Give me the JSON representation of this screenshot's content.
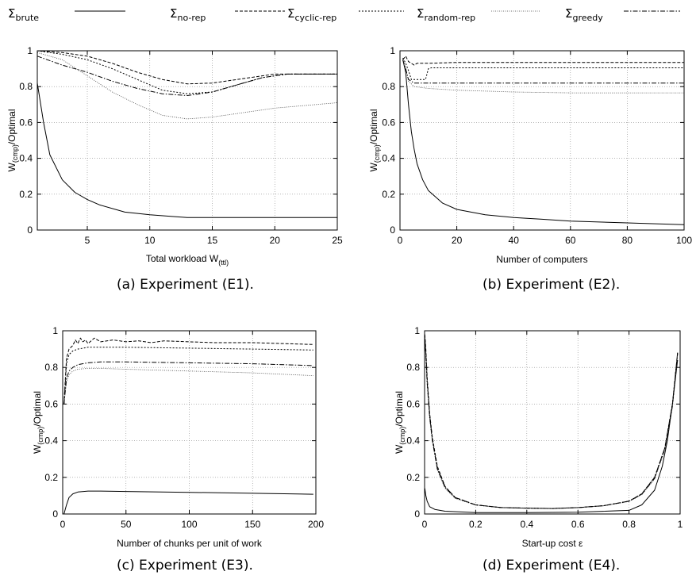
{
  "legend": {
    "symbol": "Σ",
    "entries": [
      {
        "key": "brute",
        "subscript": "brute"
      },
      {
        "key": "norep",
        "subscript": "no-rep"
      },
      {
        "key": "cyclic",
        "subscript": "cyclic-rep"
      },
      {
        "key": "random",
        "subscript": "random-rep"
      },
      {
        "key": "greedy",
        "subscript": "greedy"
      }
    ]
  },
  "chart_data": [
    {
      "type": "line",
      "caption": "(a) Experiment (E1).",
      "xlabel": "Total workload W",
      "xlabel_sub": "(ttl)",
      "ylabel": "W",
      "ylabel_sub": "(cmp)",
      "ylabel_suffix": "/Optimal",
      "xlim": [
        1,
        25
      ],
      "ylim": [
        0,
        1
      ],
      "xticks": [
        5,
        10,
        15,
        20,
        25
      ],
      "yticks": [
        0,
        0.2,
        0.4,
        0.6,
        0.8,
        1
      ],
      "ytick_labels": [
        "0",
        "0.2",
        "0.4",
        "0.6",
        "0.8",
        "1"
      ],
      "grid": true,
      "series": [
        {
          "key": "brute",
          "x": [
            1,
            1.5,
            2,
            3,
            4,
            5,
            6,
            8,
            10,
            12,
            13,
            15,
            20,
            25
          ],
          "y": [
            0.82,
            0.6,
            0.42,
            0.28,
            0.21,
            0.17,
            0.14,
            0.1,
            0.085,
            0.075,
            0.07,
            0.07,
            0.07,
            0.07
          ]
        },
        {
          "key": "norep",
          "x": [
            1,
            3,
            5,
            7,
            9,
            11,
            13,
            15,
            17,
            19,
            20,
            21,
            25
          ],
          "y": [
            1.0,
            0.99,
            0.97,
            0.93,
            0.88,
            0.84,
            0.815,
            0.82,
            0.84,
            0.86,
            0.87,
            0.87,
            0.87
          ]
        },
        {
          "key": "cyclic",
          "x": [
            1,
            3,
            5,
            7,
            9,
            11,
            13,
            15,
            17,
            19,
            21,
            25
          ],
          "y": [
            1.0,
            0.98,
            0.95,
            0.9,
            0.84,
            0.78,
            0.76,
            0.77,
            0.81,
            0.85,
            0.87,
            0.87
          ]
        },
        {
          "key": "random",
          "x": [
            1,
            3,
            5,
            7,
            9,
            11,
            13,
            15,
            17,
            20,
            25
          ],
          "y": [
            0.99,
            0.95,
            0.86,
            0.77,
            0.7,
            0.64,
            0.62,
            0.63,
            0.65,
            0.68,
            0.71
          ]
        },
        {
          "key": "greedy",
          "x": [
            1,
            3,
            5,
            7,
            9,
            11,
            13,
            15,
            17,
            19,
            21,
            25
          ],
          "y": [
            0.97,
            0.92,
            0.88,
            0.83,
            0.79,
            0.76,
            0.75,
            0.77,
            0.81,
            0.85,
            0.87,
            0.87
          ]
        }
      ]
    },
    {
      "type": "line",
      "caption": "(b) Experiment (E2).",
      "xlabel": "Number of computers",
      "xlabel_sub": "",
      "ylabel": "W",
      "ylabel_sub": "(cmp)",
      "ylabel_suffix": "/Optimal",
      "xlim": [
        0,
        100
      ],
      "ylim": [
        0,
        1
      ],
      "xticks": [
        0,
        20,
        40,
        60,
        80,
        100
      ],
      "yticks": [
        0,
        0.2,
        0.4,
        0.6,
        0.8,
        1
      ],
      "ytick_labels": [
        "0",
        "0.2",
        "0.4",
        "0.6",
        "0.8",
        "1"
      ],
      "grid": true,
      "series": [
        {
          "key": "brute",
          "x": [
            1,
            2,
            3,
            4,
            5,
            6,
            8,
            10,
            15,
            20,
            30,
            40,
            50,
            60,
            80,
            100
          ],
          "y": [
            0.95,
            0.88,
            0.7,
            0.55,
            0.45,
            0.37,
            0.28,
            0.22,
            0.15,
            0.115,
            0.085,
            0.07,
            0.06,
            0.05,
            0.04,
            0.03
          ]
        },
        {
          "key": "norep",
          "x": [
            1,
            2,
            3,
            4,
            5,
            6,
            10,
            20,
            40,
            60,
            80,
            100
          ],
          "y": [
            0.95,
            0.97,
            0.94,
            0.93,
            0.92,
            0.93,
            0.93,
            0.935,
            0.935,
            0.935,
            0.935,
            0.935
          ]
        },
        {
          "key": "cyclic",
          "x": [
            1,
            2,
            3,
            4,
            5,
            8,
            9,
            10,
            11,
            20,
            40,
            60,
            80,
            100
          ],
          "y": [
            0.96,
            0.93,
            0.89,
            0.84,
            0.84,
            0.84,
            0.84,
            0.9,
            0.905,
            0.905,
            0.905,
            0.905,
            0.905,
            0.905
          ]
        },
        {
          "key": "random",
          "x": [
            1,
            2,
            3,
            5,
            10,
            20,
            40,
            60,
            80,
            100
          ],
          "y": [
            0.95,
            0.9,
            0.83,
            0.8,
            0.79,
            0.78,
            0.77,
            0.765,
            0.765,
            0.765
          ]
        },
        {
          "key": "greedy",
          "x": [
            1,
            2,
            3,
            5,
            10,
            20,
            40,
            60,
            80,
            100
          ],
          "y": [
            0.95,
            0.9,
            0.84,
            0.82,
            0.82,
            0.82,
            0.82,
            0.82,
            0.82,
            0.82
          ]
        }
      ]
    },
    {
      "type": "line",
      "caption": "(c) Experiment (E3).",
      "xlabel": "Number of chunks per unit of work",
      "xlabel_sub": "",
      "ylabel": "W",
      "ylabel_sub": "(cmp)",
      "ylabel_suffix": "/Optimal",
      "xlim": [
        0,
        200
      ],
      "ylim": [
        0,
        1
      ],
      "xticks": [
        0,
        50,
        100,
        150,
        200
      ],
      "yticks": [
        0,
        0.2,
        0.4,
        0.6,
        0.8,
        1
      ],
      "ytick_labels": [
        "0",
        "0.2",
        "0.4",
        "0.6",
        "0.8",
        "1"
      ],
      "grid": true,
      "series": [
        {
          "key": "brute",
          "x": [
            1,
            3,
            5,
            8,
            12,
            20,
            30,
            50,
            100,
            150,
            198
          ],
          "y": [
            0.0,
            0.05,
            0.09,
            0.11,
            0.12,
            0.125,
            0.125,
            0.123,
            0.118,
            0.113,
            0.108
          ]
        },
        {
          "key": "norep",
          "x": [
            1,
            3,
            5,
            8,
            10,
            12,
            14,
            16,
            18,
            20,
            25,
            30,
            40,
            50,
            60,
            70,
            80,
            100,
            120,
            150,
            198
          ],
          "y": [
            0.6,
            0.85,
            0.9,
            0.92,
            0.95,
            0.93,
            0.96,
            0.94,
            0.95,
            0.93,
            0.96,
            0.94,
            0.95,
            0.94,
            0.945,
            0.935,
            0.945,
            0.94,
            0.935,
            0.935,
            0.925
          ]
        },
        {
          "key": "cyclic",
          "x": [
            1,
            3,
            5,
            8,
            12,
            20,
            30,
            50,
            100,
            150,
            198
          ],
          "y": [
            0.6,
            0.82,
            0.87,
            0.89,
            0.9,
            0.91,
            0.91,
            0.91,
            0.905,
            0.9,
            0.895
          ]
        },
        {
          "key": "random",
          "x": [
            1,
            3,
            5,
            8,
            12,
            20,
            30,
            50,
            100,
            150,
            198
          ],
          "y": [
            0.6,
            0.72,
            0.76,
            0.78,
            0.79,
            0.795,
            0.795,
            0.79,
            0.78,
            0.77,
            0.755
          ]
        },
        {
          "key": "greedy",
          "x": [
            1,
            3,
            5,
            8,
            12,
            20,
            30,
            50,
            100,
            150,
            198
          ],
          "y": [
            0.6,
            0.74,
            0.78,
            0.8,
            0.815,
            0.825,
            0.83,
            0.83,
            0.825,
            0.82,
            0.81
          ]
        }
      ]
    },
    {
      "type": "line",
      "caption": "(d) Experiment (E4).",
      "xlabel": "Start-up cost ε",
      "xlabel_sub": "",
      "ylabel": "W",
      "ylabel_sub": "(cmp)",
      "ylabel_suffix": "/Optimal",
      "xlim": [
        0,
        1
      ],
      "ylim": [
        0,
        1
      ],
      "xticks": [
        0,
        0.2,
        0.4,
        0.6,
        0.8,
        1
      ],
      "yticks": [
        0,
        0.2,
        0.4,
        0.6,
        0.8,
        1
      ],
      "ytick_labels": [
        "0",
        "0.2",
        "0.4",
        "0.6",
        "0.8",
        "1"
      ],
      "grid": true,
      "series": [
        {
          "key": "brute",
          "x": [
            0.001,
            0.005,
            0.01,
            0.02,
            0.04,
            0.08,
            0.2,
            0.4,
            0.6,
            0.8,
            0.85,
            0.9,
            0.93,
            0.95,
            0.97,
            0.99
          ],
          "y": [
            0.14,
            0.1,
            0.07,
            0.04,
            0.025,
            0.015,
            0.008,
            0.008,
            0.01,
            0.02,
            0.05,
            0.13,
            0.26,
            0.4,
            0.6,
            0.84
          ]
        },
        {
          "key": "norep",
          "x": [
            0.001,
            0.005,
            0.01,
            0.02,
            0.03,
            0.05,
            0.08,
            0.12,
            0.2,
            0.3,
            0.4,
            0.5,
            0.6,
            0.7,
            0.8,
            0.85,
            0.9,
            0.94,
            0.97,
            0.99
          ],
          "y": [
            0.98,
            0.9,
            0.75,
            0.55,
            0.42,
            0.26,
            0.15,
            0.09,
            0.05,
            0.035,
            0.032,
            0.03,
            0.035,
            0.045,
            0.07,
            0.11,
            0.2,
            0.36,
            0.6,
            0.88
          ]
        },
        {
          "key": "cyclic",
          "x": [
            0.001,
            0.005,
            0.01,
            0.02,
            0.03,
            0.05,
            0.08,
            0.12,
            0.2,
            0.3,
            0.4,
            0.5,
            0.6,
            0.7,
            0.8,
            0.85,
            0.9,
            0.94,
            0.97,
            0.99
          ],
          "y": [
            0.97,
            0.88,
            0.73,
            0.54,
            0.41,
            0.25,
            0.15,
            0.09,
            0.05,
            0.035,
            0.032,
            0.03,
            0.035,
            0.045,
            0.07,
            0.11,
            0.2,
            0.36,
            0.6,
            0.88
          ]
        },
        {
          "key": "random",
          "x": [
            0.001,
            0.005,
            0.01,
            0.02,
            0.03,
            0.05,
            0.08,
            0.12,
            0.2,
            0.3,
            0.4,
            0.5,
            0.6,
            0.7,
            0.8,
            0.85,
            0.9,
            0.94,
            0.97,
            0.99
          ],
          "y": [
            0.95,
            0.86,
            0.71,
            0.52,
            0.4,
            0.24,
            0.14,
            0.085,
            0.048,
            0.034,
            0.031,
            0.029,
            0.034,
            0.044,
            0.068,
            0.105,
            0.19,
            0.35,
            0.58,
            0.87
          ]
        },
        {
          "key": "greedy",
          "x": [
            0.001,
            0.005,
            0.01,
            0.02,
            0.03,
            0.05,
            0.08,
            0.12,
            0.2,
            0.3,
            0.4,
            0.5,
            0.6,
            0.7,
            0.8,
            0.85,
            0.9,
            0.94,
            0.97,
            0.99
          ],
          "y": [
            0.96,
            0.87,
            0.72,
            0.53,
            0.405,
            0.245,
            0.145,
            0.088,
            0.05,
            0.035,
            0.032,
            0.03,
            0.035,
            0.045,
            0.07,
            0.108,
            0.195,
            0.355,
            0.59,
            0.875
          ]
        }
      ]
    }
  ]
}
